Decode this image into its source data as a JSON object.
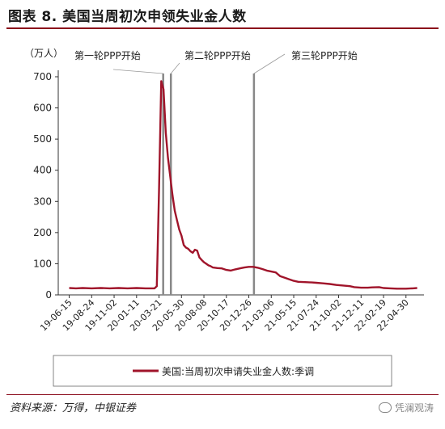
{
  "figure": {
    "title": "图表 8. 美国当周初次申领失业金人数",
    "source": "资料来源：万得，中银证券",
    "watermark": "凭澜观涛"
  },
  "chart_data": {
    "type": "line",
    "title": "",
    "unit_label": "（万人）",
    "xlabel": "",
    "ylabel": "",
    "ylim": [
      0,
      700
    ],
    "yticks": [
      0,
      100,
      200,
      300,
      400,
      500,
      600,
      700
    ],
    "grid": false,
    "legend_position": "bottom",
    "xticks": [
      "19-06-15",
      "19-08-24",
      "19-11-02",
      "20-01-11",
      "20-03-21",
      "20-05-30",
      "20-08-08",
      "20-10-17",
      "20-12-26",
      "21-03-06",
      "21-05-15",
      "21-07-24",
      "21-10-02",
      "21-12-11",
      "22-02-19",
      "22-04-30"
    ],
    "series": [
      {
        "name": "美国:当周初次申请失业金人数:季调",
        "color": "#a0142a",
        "x": [
          "2019-06-15",
          "2019-07-06",
          "2019-07-27",
          "2019-08-24",
          "2019-09-21",
          "2019-10-19",
          "2019-11-16",
          "2019-12-14",
          "2020-01-11",
          "2020-02-08",
          "2020-03-07",
          "2020-03-14",
          "2020-03-21",
          "2020-03-28",
          "2020-04-04",
          "2020-04-11",
          "2020-04-18",
          "2020-04-25",
          "2020-05-02",
          "2020-05-09",
          "2020-05-16",
          "2020-05-23",
          "2020-05-30",
          "2020-06-06",
          "2020-06-13",
          "2020-06-20",
          "2020-06-27",
          "2020-07-04",
          "2020-07-11",
          "2020-07-18",
          "2020-07-25",
          "2020-08-01",
          "2020-08-08",
          "2020-08-15",
          "2020-08-22",
          "2020-08-29",
          "2020-09-05",
          "2020-09-19",
          "2020-10-03",
          "2020-10-17",
          "2020-10-31",
          "2020-11-14",
          "2020-11-28",
          "2020-12-12",
          "2020-12-26",
          "2021-01-09",
          "2021-01-23",
          "2021-02-06",
          "2021-02-20",
          "2021-03-06",
          "2021-03-20",
          "2021-04-03",
          "2021-04-17",
          "2021-05-01",
          "2021-05-15",
          "2021-05-29",
          "2021-06-19",
          "2021-07-10",
          "2021-07-24",
          "2021-08-14",
          "2021-09-04",
          "2021-09-25",
          "2021-10-16",
          "2021-11-06",
          "2021-11-20",
          "2021-12-11",
          "2022-01-01",
          "2022-01-15",
          "2022-02-05",
          "2022-02-19",
          "2022-03-12",
          "2022-04-02",
          "2022-04-30",
          "2022-05-21",
          "2022-06-04"
        ],
        "values": [
          22,
          21,
          22,
          21,
          22,
          21,
          22,
          21,
          22,
          21,
          21,
          28,
          330,
          686,
          660,
          520,
          440,
          380,
          320,
          270,
          240,
          210,
          190,
          160,
          152,
          148,
          140,
          135,
          145,
          142,
          120,
          112,
          105,
          100,
          95,
          92,
          88,
          86,
          85,
          80,
          78,
          82,
          85,
          88,
          90,
          90,
          87,
          83,
          78,
          75,
          72,
          60,
          55,
          50,
          45,
          42,
          41,
          40,
          39,
          37,
          35,
          32,
          30,
          28,
          25,
          23,
          23,
          24,
          25,
          22,
          21,
          20,
          20,
          21,
          22
        ]
      }
    ],
    "annotations": [
      {
        "label": "第一轮PPP开始",
        "date": "2020-04-03"
      },
      {
        "label": "第二轮PPP开始",
        "date": "2020-04-27"
      },
      {
        "label": "第三轮PPP开始",
        "date": "2021-01-11"
      }
    ]
  }
}
